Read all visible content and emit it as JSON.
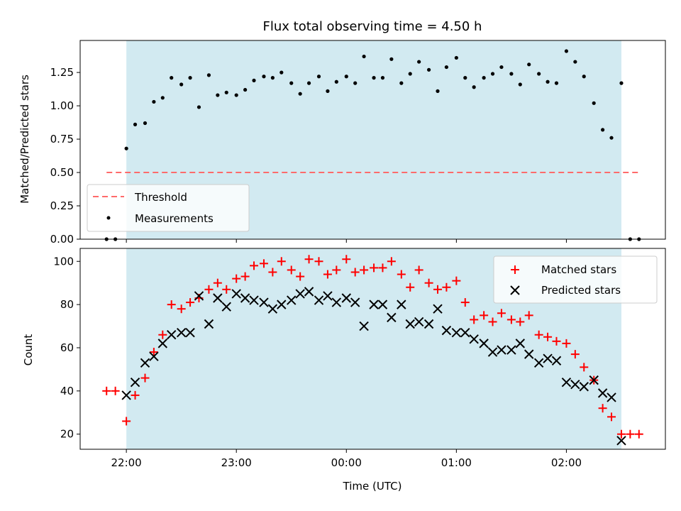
{
  "title": "Flux total observing time = 4.50 h",
  "colors": {
    "shade": "#add8e6",
    "threshold": "#ff6b6b",
    "matched": "#ff0000",
    "predicted": "#000000",
    "measurement": "#000000"
  },
  "chart_data": [
    {
      "type": "scatter",
      "ylabel": "Matched/Predicted stars",
      "xlabel": "",
      "xlim": [
        -0.42,
        4.9
      ],
      "ylim": [
        0,
        1.49
      ],
      "yticks": [
        "0.00",
        "0.25",
        "0.50",
        "0.75",
        "1.00",
        "1.25"
      ],
      "x_ticks": [
        0,
        1,
        2,
        3,
        4
      ],
      "shaded_interval": [
        0,
        4.5
      ],
      "threshold": {
        "name": "Threshold",
        "value": 0.5,
        "x_range": [
          -0.18,
          4.65
        ]
      },
      "legend": {
        "position": "lower-left",
        "entries": [
          "Threshold",
          "Measurements"
        ]
      },
      "series": [
        {
          "name": "Measurements",
          "x": [
            -0.18,
            -0.1,
            0.0,
            0.08,
            0.17,
            0.25,
            0.33,
            0.41,
            0.5,
            0.58,
            0.66,
            0.75,
            0.83,
            0.91,
            1.0,
            1.08,
            1.16,
            1.25,
            1.33,
            1.41,
            1.5,
            1.58,
            1.66,
            1.75,
            1.83,
            1.91,
            2.0,
            2.08,
            2.16,
            2.25,
            2.33,
            2.41,
            2.5,
            2.58,
            2.66,
            2.75,
            2.83,
            2.91,
            3.0,
            3.08,
            3.16,
            3.25,
            3.33,
            3.41,
            3.5,
            3.58,
            3.66,
            3.75,
            3.83,
            3.91,
            4.0,
            4.08,
            4.16,
            4.25,
            4.33,
            4.41,
            4.5,
            4.58,
            4.66
          ],
          "y": [
            0,
            0,
            0.68,
            0.86,
            0.87,
            1.03,
            1.06,
            1.21,
            1.16,
            1.21,
            0.99,
            1.23,
            1.08,
            1.1,
            1.08,
            1.12,
            1.19,
            1.22,
            1.21,
            1.25,
            1.17,
            1.09,
            1.17,
            1.22,
            1.11,
            1.18,
            1.22,
            1.17,
            1.37,
            1.21,
            1.21,
            1.35,
            1.17,
            1.24,
            1.33,
            1.27,
            1.11,
            1.29,
            1.36,
            1.21,
            1.14,
            1.21,
            1.24,
            1.29,
            1.24,
            1.16,
            1.31,
            1.24,
            1.18,
            1.17,
            1.41,
            1.33,
            1.22,
            1.02,
            0.82,
            0.76,
            1.17,
            0,
            0
          ]
        }
      ]
    },
    {
      "type": "scatter",
      "ylabel": "Count",
      "xlabel": "Time (UTC)",
      "xlim": [
        -0.42,
        4.9
      ],
      "ylim": [
        13,
        106
      ],
      "yticks": [
        "20",
        "40",
        "60",
        "80",
        "100"
      ],
      "x_ticks": [
        0,
        1,
        2,
        3,
        4
      ],
      "x_tick_labels": [
        "22:00",
        "23:00",
        "00:00",
        "01:00",
        "02:00"
      ],
      "shaded_interval": [
        0,
        4.5
      ],
      "legend": {
        "position": "upper-right",
        "entries": [
          "Matched stars",
          "Predicted stars"
        ]
      },
      "series": [
        {
          "name": "Matched stars",
          "x": [
            -0.18,
            -0.1,
            0.0,
            0.08,
            0.17,
            0.25,
            0.33,
            0.41,
            0.5,
            0.58,
            0.66,
            0.75,
            0.83,
            0.91,
            1.0,
            1.08,
            1.16,
            1.25,
            1.33,
            1.41,
            1.5,
            1.58,
            1.66,
            1.75,
            1.83,
            1.91,
            2.0,
            2.08,
            2.16,
            2.25,
            2.33,
            2.41,
            2.5,
            2.58,
            2.66,
            2.75,
            2.83,
            2.91,
            3.0,
            3.08,
            3.16,
            3.25,
            3.33,
            3.41,
            3.5,
            3.58,
            3.66,
            3.75,
            3.83,
            3.91,
            4.0,
            4.08,
            4.16,
            4.25,
            4.33,
            4.41,
            4.5,
            4.58,
            4.66
          ],
          "y": [
            40,
            40,
            26,
            38,
            46,
            58,
            66,
            80,
            78,
            81,
            83,
            87,
            90,
            87,
            92,
            93,
            98,
            99,
            95,
            100,
            96,
            93,
            101,
            100,
            94,
            96,
            101,
            95,
            96,
            97,
            97,
            100,
            94,
            88,
            96,
            90,
            87,
            88,
            91,
            81,
            73,
            75,
            72,
            76,
            73,
            72,
            75,
            66,
            65,
            63,
            62,
            57,
            51,
            45,
            32,
            28,
            20,
            20,
            20
          ]
        },
        {
          "name": "Predicted stars",
          "x": [
            0.0,
            0.08,
            0.17,
            0.25,
            0.33,
            0.41,
            0.5,
            0.58,
            0.66,
            0.75,
            0.83,
            0.91,
            1.0,
            1.08,
            1.16,
            1.25,
            1.33,
            1.41,
            1.5,
            1.58,
            1.66,
            1.75,
            1.83,
            1.91,
            2.0,
            2.08,
            2.16,
            2.25,
            2.33,
            2.41,
            2.5,
            2.58,
            2.66,
            2.75,
            2.83,
            2.91,
            3.0,
            3.08,
            3.16,
            3.25,
            3.33,
            3.41,
            3.5,
            3.58,
            3.66,
            3.75,
            3.83,
            3.91,
            4.0,
            4.08,
            4.16,
            4.25,
            4.33,
            4.41,
            4.5
          ],
          "y": [
            38,
            44,
            53,
            56,
            62,
            66,
            67,
            67,
            84,
            71,
            83,
            79,
            85,
            83,
            82,
            81,
            78,
            80,
            82,
            85,
            86,
            82,
            84,
            81,
            83,
            81,
            70,
            80,
            80,
            74,
            80,
            71,
            72,
            71,
            78,
            68,
            67,
            67,
            64,
            62,
            58,
            59,
            59,
            62,
            57,
            53,
            55,
            54,
            44,
            43,
            42,
            45,
            39,
            37,
            17
          ]
        }
      ]
    }
  ]
}
